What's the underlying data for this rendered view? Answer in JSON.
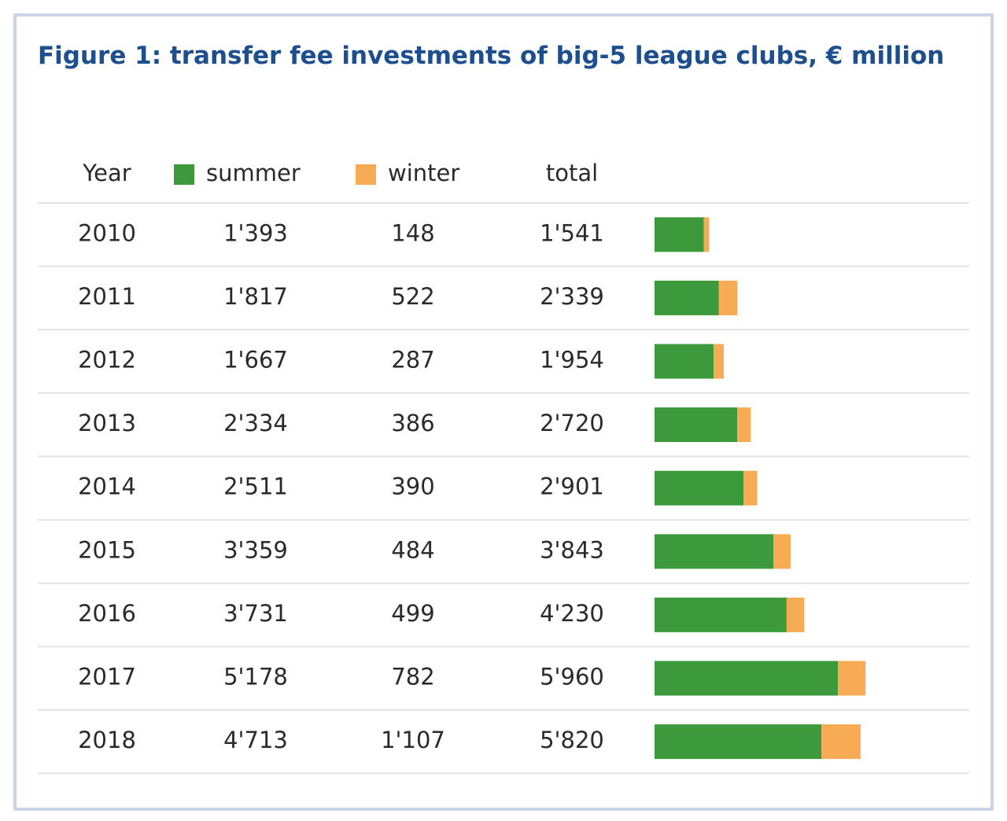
{
  "chart_data": {
    "type": "bar",
    "title": "Figure 1: transfer fee investments of big-5 league clubs, € million",
    "category_label": "Year",
    "total_label": "total",
    "categories": [
      "2010",
      "2011",
      "2012",
      "2013",
      "2014",
      "2015",
      "2016",
      "2017",
      "2018"
    ],
    "series": [
      {
        "name": "summer",
        "color": "#3c9a3c",
        "values": [
          1393,
          1817,
          1667,
          2334,
          2511,
          3359,
          3731,
          5178,
          4713
        ],
        "value_labels": [
          "1'393",
          "1'817",
          "1'667",
          "2'334",
          "2'511",
          "3'359",
          "3'731",
          "5'178",
          "4'713"
        ]
      },
      {
        "name": "winter",
        "color": "#f7ab55",
        "values": [
          148,
          522,
          287,
          386,
          390,
          484,
          499,
          782,
          1107
        ],
        "value_labels": [
          "148",
          "522",
          "287",
          "386",
          "390",
          "484",
          "499",
          "782",
          "1'107"
        ]
      }
    ],
    "totals": [
      "1'541",
      "2'339",
      "1'954",
      "2'720",
      "2'901",
      "3'843",
      "4'230",
      "5'960",
      "5'820"
    ]
  }
}
